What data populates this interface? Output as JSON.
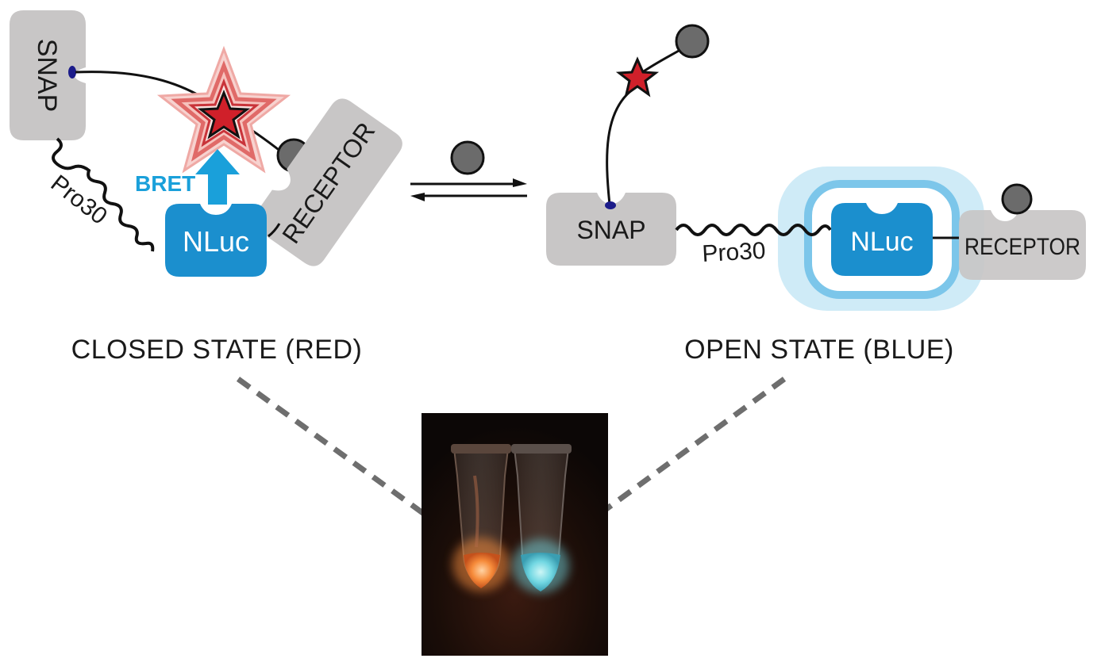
{
  "closed_state": {
    "snap_label": "SNAP",
    "linker_label": "Pro30",
    "nluc_label": "NLuc",
    "receptor_label": "RECEPTOR",
    "bret_label": "BRET",
    "caption": "CLOSED STATE (RED)"
  },
  "open_state": {
    "snap_label": "SNAP",
    "linker_label": "Pro30",
    "nluc_label": "NLuc",
    "receptor_label": "RECEPTOR",
    "caption": "OPEN STATE (BLUE)"
  },
  "colors": {
    "protein_gray": "#c8c6c6",
    "nluc_blue": "#1b8fce",
    "bret_arrow": "#1aa0da",
    "fluorophore_red": "#d0202a",
    "ligand_gray": "#6b6b6b",
    "glow_blue": "#9fd3ee",
    "tube_orange": "#f08a3c",
    "tube_cyan": "#6fd6e0"
  },
  "icons": {
    "equilibrium": "equilibrium-arrows-icon",
    "fluorophore": "star-icon",
    "ligand": "circle-icon"
  }
}
